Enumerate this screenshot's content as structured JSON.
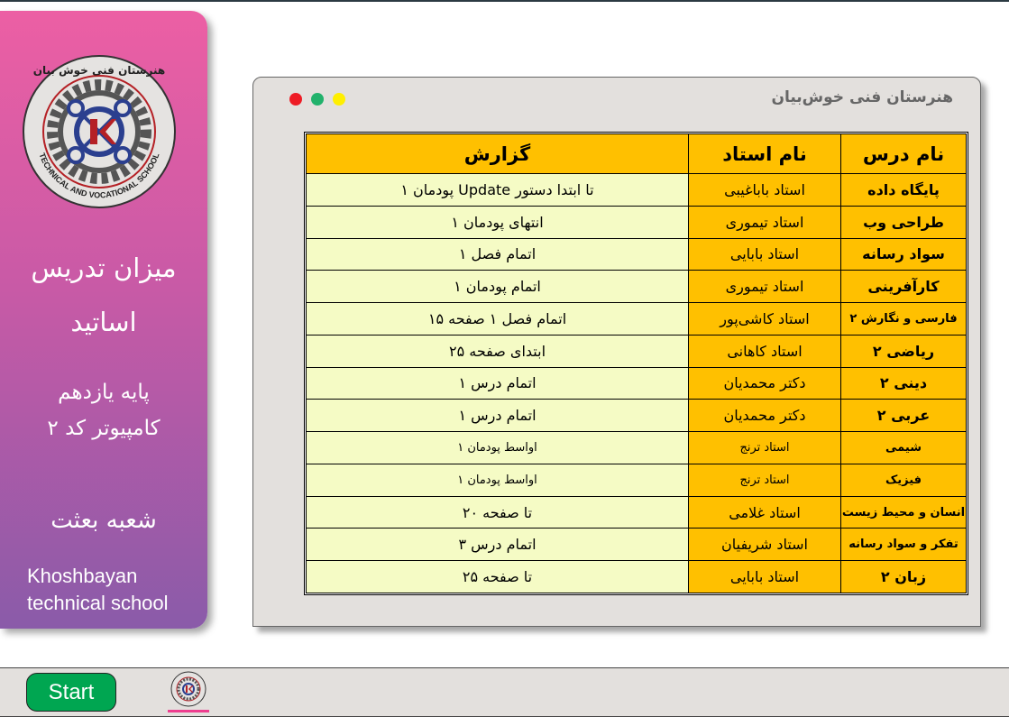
{
  "sidebar": {
    "logo_text_fa": "هنرستان فنی خوش بیان",
    "logo_text_en": "TECHNICAL AND VOCATIONAL SCHOOL",
    "title_line1": "میزان تدریس",
    "title_line2": "اساتید",
    "grade": "پایه یازدهم",
    "class": "کامپیوتر کد ۲",
    "branch": "شعبه بعثت",
    "school_en_line1": "Khoshbayan",
    "school_en_line2": "technical school"
  },
  "window": {
    "title": "هنرستان فنی خوش‌بیان",
    "controls": {
      "close_color": "#ee1c25",
      "min_color": "#22b26c",
      "max_color": "#ffef00"
    }
  },
  "table": {
    "headers": {
      "subject": "نام درس",
      "teacher": "نام استاد",
      "report": "گزارش"
    },
    "rows": [
      {
        "subject": "پایگاه داده",
        "teacher": "استاد باباغیبی",
        "report": "تا ابتدا دستور Update پودمان ۱"
      },
      {
        "subject": "طراحی وب",
        "teacher": "استاد تیموری",
        "report": "انتهای پودمان ۱"
      },
      {
        "subject": "سواد رسانه",
        "teacher": "استاد بابایی",
        "report": "اتمام فصل ۱"
      },
      {
        "subject": "کارآفرینی",
        "teacher": "استاد تیموری",
        "report": "اتمام پودمان ۱"
      },
      {
        "subject": "فارسی و نگارش ۲",
        "teacher": "استاد کاشی‌پور",
        "report": "اتمام فصل ۱ صفحه ۱۵"
      },
      {
        "subject": "ریاضی ۲",
        "teacher": "استاد کاهانی",
        "report": "ابتدای صفحه ۲۵"
      },
      {
        "subject": "دینی ۲",
        "teacher": "دکتر محمدیان",
        "report": "اتمام درس ۱"
      },
      {
        "subject": "عربی ۲",
        "teacher": "دکتر محمدیان",
        "report": "اتمام درس ۱"
      },
      {
        "subject": "شیمی",
        "teacher": "استاد ترنج",
        "report": "اواسط پودمان ۱"
      },
      {
        "subject": "فیزیک",
        "teacher": "استاد ترنج",
        "report": "اواسط پودمان ۱"
      },
      {
        "subject": "انسان و محیط زیست",
        "teacher": "استاد غلامی",
        "report": "تا صفحه ۲۰"
      },
      {
        "subject": "تفکر و سواد رسانه",
        "teacher": "استاد شریفیان",
        "report": "اتمام درس ۳"
      },
      {
        "subject": "زبان ۲",
        "teacher": "استاد بابایی",
        "report": "تا صفحه ۲۵"
      }
    ]
  },
  "taskbar": {
    "start_label": "Start",
    "app_icon": "school-logo-icon"
  }
}
